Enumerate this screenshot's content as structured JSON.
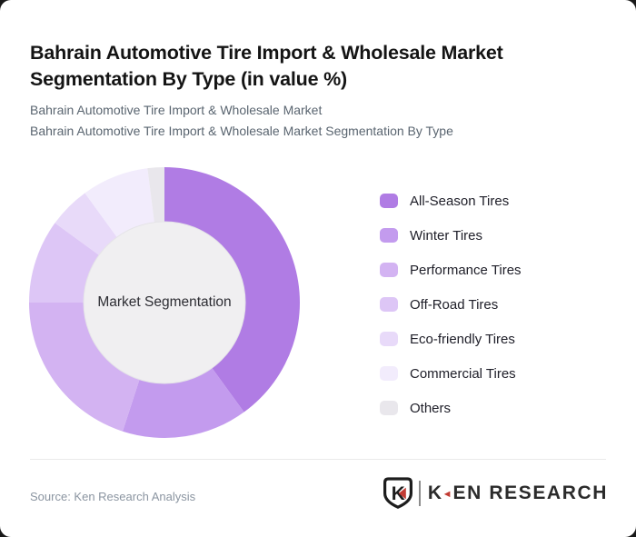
{
  "page": {
    "title": "Bahrain Automotive Tire Import & Wholesale Market Segmentation By Type (in value %)",
    "subtitle_line1": "Bahrain Automotive Tire Import & Wholesale Market",
    "subtitle_line2": "Bahrain Automotive Tire Import & Wholesale Market Segmentation By Type"
  },
  "chart_data": {
    "type": "pie",
    "variant": "donut",
    "title": "Bahrain Automotive Tire Import & Wholesale Market Segmentation By Type (in value %)",
    "unit": "value %",
    "center_label": "Market Segmentation",
    "start_angle_deg": 0,
    "direction": "clockwise",
    "hole_color": "#f0eff1",
    "hole_stroke": "#e5e4e8",
    "legend_position": "right",
    "segments": [
      {
        "label": "All-Season Tires",
        "value": 40,
        "color": "#b07ce4"
      },
      {
        "label": "Winter Tires",
        "value": 15,
        "color": "#c39bee"
      },
      {
        "label": "Performance Tires",
        "value": 20,
        "color": "#d3b3f2"
      },
      {
        "label": "Off-Road Tires",
        "value": 10,
        "color": "#ddc6f6"
      },
      {
        "label": "Eco-friendly Tires",
        "value": 5,
        "color": "#e8daf9"
      },
      {
        "label": "Commercial Tires",
        "value": 8,
        "color": "#f2ecfc"
      },
      {
        "label": "Others",
        "value": 2,
        "color": "#e9e7ec"
      }
    ]
  },
  "footer": {
    "source": "Source: Ken Research Analysis",
    "logo_letter": "K",
    "logo_text_start": "K",
    "logo_triangle": "◄",
    "logo_text_end": "EN RESEARCH",
    "logo_red": "#c23b33",
    "logo_dark": "#2b2b2b"
  }
}
